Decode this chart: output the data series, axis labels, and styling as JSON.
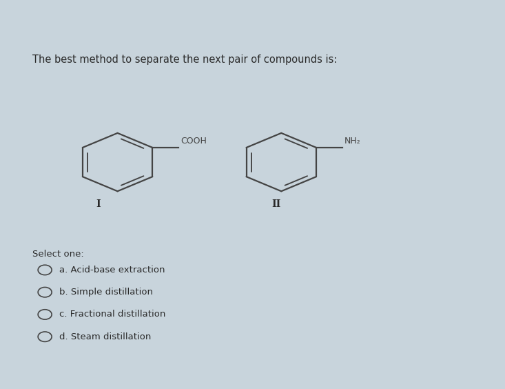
{
  "title": "The best method to separate the next pair of compounds is:",
  "compound1_label": "COOH",
  "compound2_label": "NH₂",
  "roman1": "I",
  "roman2": "II",
  "select_text": "Select one:",
  "options": [
    "a. Acid-base extraction",
    "b. Simple distillation",
    "c. Fractional distillation",
    "d. Steam distillation"
  ],
  "outer_bg": "#c8d4dc",
  "card_bg": "#dde5ec",
  "top_strip_color": "#b8c8d4",
  "text_color": "#2a2a2a",
  "structure_color": "#444444",
  "title_fontsize": 10.5,
  "option_fontsize": 9.5,
  "select_fontsize": 9.5,
  "roman_fontsize": 10
}
